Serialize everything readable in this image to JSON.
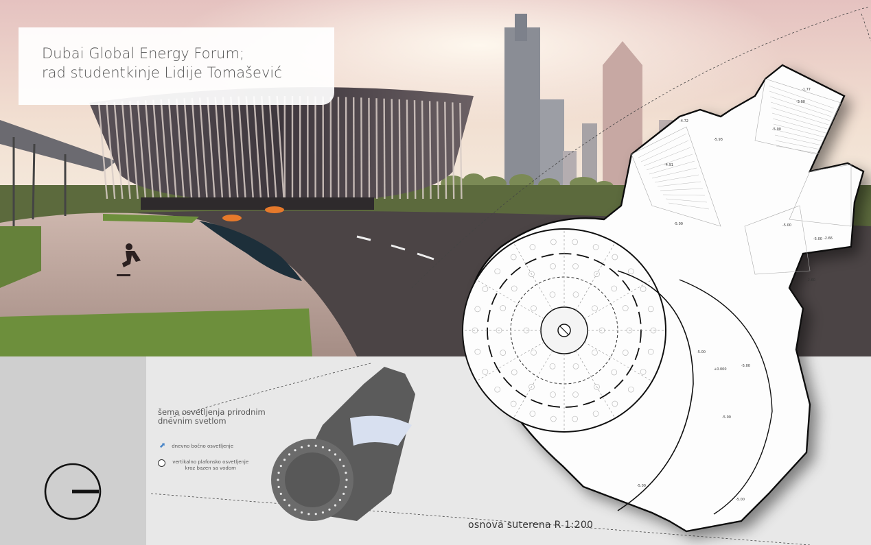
{
  "caption": {
    "line1": "Dubai Global Energy Forum;",
    "line2": "rad studentkinje Lidije Tomašević"
  },
  "scheme": {
    "title_line1": "šema osvetljenja prirodnim",
    "title_line2": "dnevnim svetlom",
    "legend": [
      {
        "icon": "arrow-icon",
        "text": "dnevno bočno osvetljenje"
      },
      {
        "icon": "circle-icon",
        "text_line1": "vertikalno plafonsko osvetljenje",
        "text_line2": "kroz bazen sa vodom"
      }
    ]
  },
  "plan": {
    "label": "osnova suterena  R 1:200",
    "levels": [
      "-1.77",
      "-3.00",
      "-5.00",
      "-4.72",
      "-5.93",
      "-4.91",
      "-5.00",
      "-5.00",
      "-5.00",
      "-2.66",
      "-2.60",
      "-5.00",
      "-5.00",
      "+0.000",
      "-5.00",
      "-5.00",
      "-5.00"
    ]
  },
  "north_arrow": {
    "icon": "north-arrow-icon"
  },
  "colors": {
    "sky_top": "#e9c9c2",
    "sky_bottom": "#f3e6d6",
    "grass": "#6a8a3a",
    "asphalt": "#4a4444",
    "panel_gray": "#d7d7d7"
  }
}
